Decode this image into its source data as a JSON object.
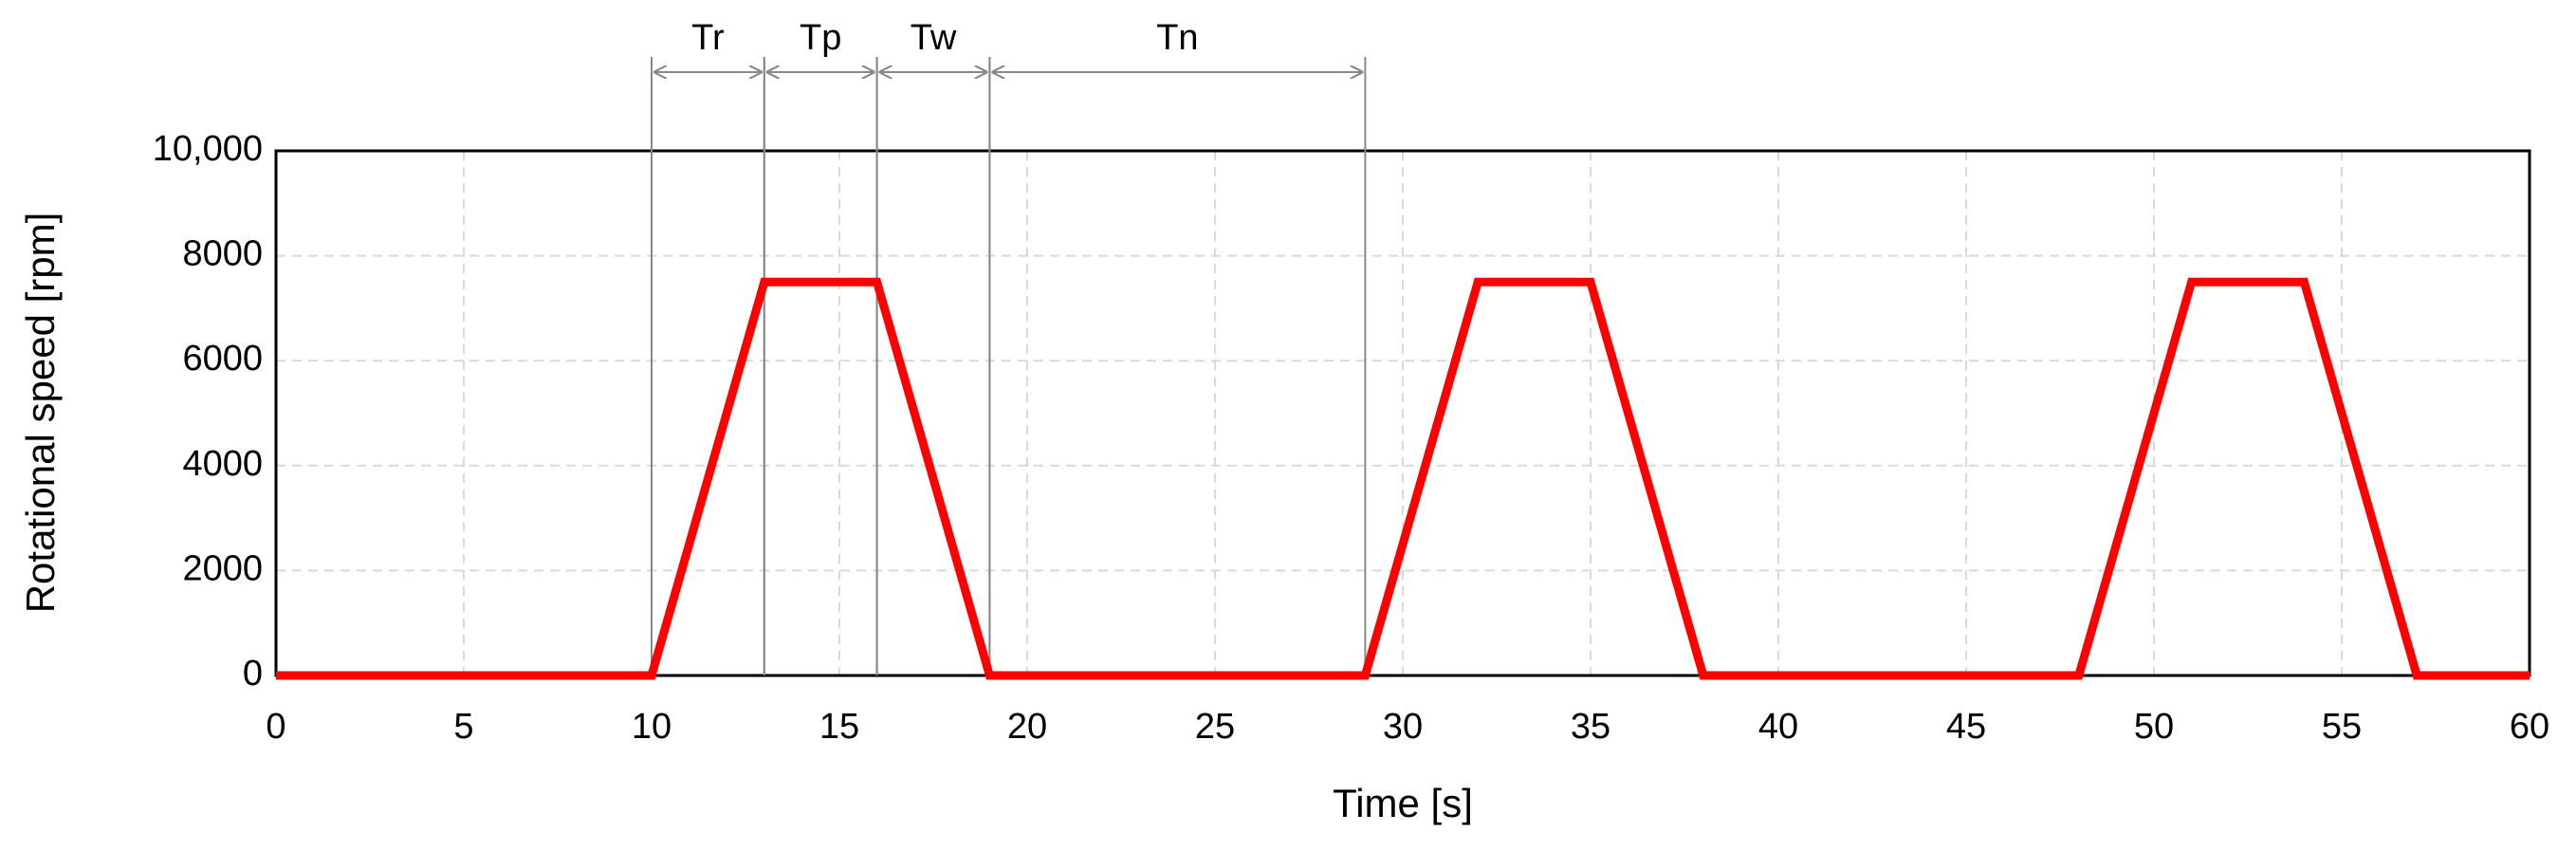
{
  "chart_data": {
    "type": "line",
    "x_label": "Time [s]",
    "y_label": "Rotational speed [rpm]",
    "x": [
      0,
      10,
      13,
      16,
      19,
      29,
      32,
      35,
      38,
      48,
      51,
      54,
      57,
      60
    ],
    "values": [
      0,
      0,
      7500,
      7500,
      0,
      0,
      7500,
      7500,
      0,
      0,
      7500,
      7500,
      0,
      0
    ],
    "color": "#ff0000",
    "xlim": [
      0,
      60
    ],
    "xticks": [
      0,
      5,
      10,
      15,
      20,
      25,
      30,
      35,
      40,
      45,
      50,
      55,
      60
    ],
    "ylim": [
      0,
      10000
    ],
    "yticks": [
      0,
      2000,
      4000,
      6000,
      8000,
      {
        "value": 10000,
        "label": "10,000"
      }
    ],
    "grid": true,
    "annotations": [
      {
        "label": "Tr",
        "x0": 10,
        "x1": 13
      },
      {
        "label": "Tp",
        "x0": 13,
        "x1": 16
      },
      {
        "label": "Tw",
        "x0": 16,
        "x1": 19
      },
      {
        "label": "Tn",
        "x0": 19,
        "x1": 29
      }
    ]
  }
}
